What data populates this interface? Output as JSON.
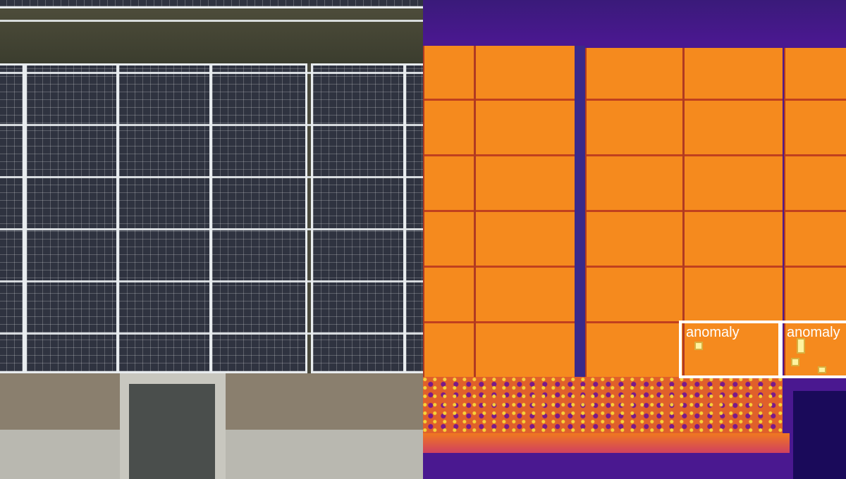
{
  "annotations": [
    {
      "label": "anomaly"
    },
    {
      "label": "anomaly"
    }
  ],
  "colors": {
    "annotation_box": "#ffffff",
    "thermal_hot": "#f58a1e",
    "thermal_cold": "#4a1890"
  }
}
